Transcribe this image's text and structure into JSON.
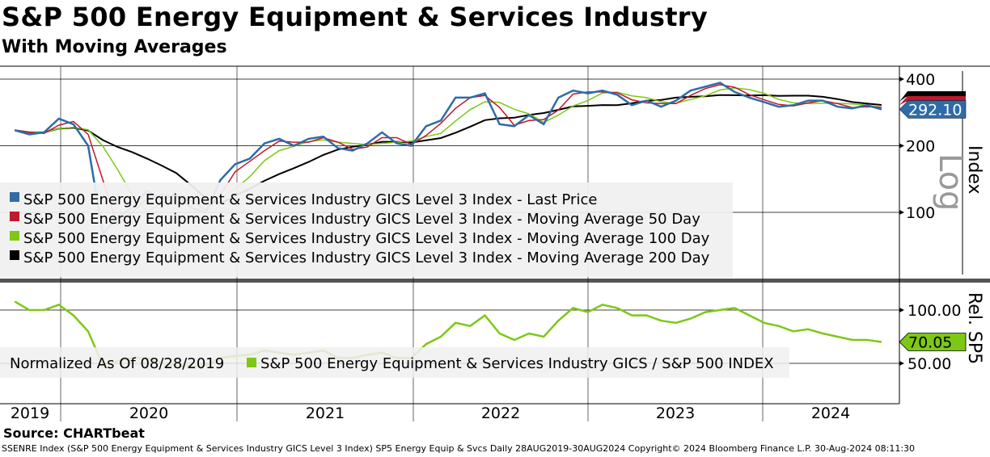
{
  "title": "S&P 500 Energy Equipment & Services Industry",
  "subtitle": "With Moving Averages",
  "source": "Source: CHARTbeat",
  "footer": "SSENRE Index (S&P 500 Energy Equipment & Services Industry GICS Level 3 Index) SP5 Energy Equip & Svcs  Daily 28AUG2019-30AUG2024  Copyright© 2024 Bloomberg Finance L.P.  30-Aug-2024 08:11:30",
  "chart_data": [
    {
      "type": "line",
      "panel": "upper",
      "scale": "log",
      "scale_label": "Log",
      "ylabel": "Index",
      "yticks": [
        100,
        200,
        400
      ],
      "ylim": [
        55,
        480
      ],
      "last_value_label": "292.10",
      "x_start": "2019-08",
      "x_labels": [
        "2019",
        "2020",
        "2021",
        "2022",
        "2023",
        "2024"
      ],
      "x": [
        "2019-09",
        "2019-10",
        "2019-11",
        "2019-12",
        "2020-01",
        "2020-02",
        "2020-03",
        "2020-04",
        "2020-05",
        "2020-06",
        "2020-07",
        "2020-08",
        "2020-09",
        "2020-10",
        "2020-11",
        "2020-12",
        "2021-01",
        "2021-02",
        "2021-03",
        "2021-04",
        "2021-05",
        "2021-06",
        "2021-07",
        "2021-08",
        "2021-09",
        "2021-10",
        "2021-11",
        "2021-12",
        "2022-01",
        "2022-02",
        "2022-03",
        "2022-04",
        "2022-05",
        "2022-06",
        "2022-07",
        "2022-08",
        "2022-09",
        "2022-10",
        "2022-11",
        "2022-12",
        "2023-01",
        "2023-02",
        "2023-03",
        "2023-04",
        "2023-05",
        "2023-06",
        "2023-07",
        "2023-08",
        "2023-09",
        "2023-10",
        "2023-11",
        "2023-12",
        "2024-01",
        "2024-02",
        "2024-03",
        "2024-04",
        "2024-05",
        "2024-06",
        "2024-07",
        "2024-08"
      ],
      "series": [
        {
          "name": "S&P 500 Energy Equipment & Services Industry GICS Level 3 Index - Last Price",
          "color": "#2e6ca8",
          "values": [
            235,
            225,
            230,
            265,
            250,
            200,
            80,
            95,
            105,
            125,
            115,
            120,
            105,
            100,
            140,
            165,
            175,
            205,
            215,
            200,
            215,
            220,
            195,
            190,
            205,
            230,
            205,
            200,
            245,
            260,
            330,
            330,
            345,
            250,
            245,
            275,
            250,
            330,
            355,
            345,
            355,
            340,
            305,
            320,
            300,
            320,
            355,
            370,
            385,
            350,
            330,
            315,
            300,
            305,
            320,
            320,
            300,
            295,
            305,
            292.1
          ]
        },
        {
          "name": "S&P 500 Energy Equipment & Services Industry GICS Level 3 Index - Moving Average 50 Day",
          "color": "#c0182c",
          "window": 2
        },
        {
          "name": "S&P 500 Energy Equipment & Services Industry GICS Level 3 Index - Moving Average 100 Day",
          "color": "#7dc815",
          "window": 4
        },
        {
          "name": "S&P 500 Energy Equipment & Services Industry GICS Level 3 Index - Moving Average 200 Day",
          "color": "#000000",
          "window": 9
        }
      ]
    },
    {
      "type": "line",
      "panel": "lower",
      "ylabel": "Rel. SP5",
      "yticks": [
        "100.00",
        "50.00"
      ],
      "last_value_label": "70.05",
      "legend_prefix": "Normalized As Of 08/28/2019",
      "series": [
        {
          "name": "S&P 500 Energy Equipment & Services Industry GICS / S&P 500 INDEX",
          "color": "#7dc815",
          "values": [
            108,
            100,
            100,
            105,
            95,
            80,
            48,
            52,
            55,
            55,
            50,
            48,
            47,
            48,
            55,
            57,
            58,
            62,
            60,
            58,
            60,
            62,
            55,
            55,
            58,
            60,
            55,
            55,
            68,
            75,
            88,
            85,
            95,
            78,
            72,
            78,
            75,
            90,
            102,
            98,
            105,
            102,
            95,
            95,
            90,
            88,
            92,
            98,
            100,
            102,
            95,
            88,
            85,
            80,
            82,
            78,
            75,
            72,
            72,
            70.05
          ]
        }
      ]
    }
  ]
}
